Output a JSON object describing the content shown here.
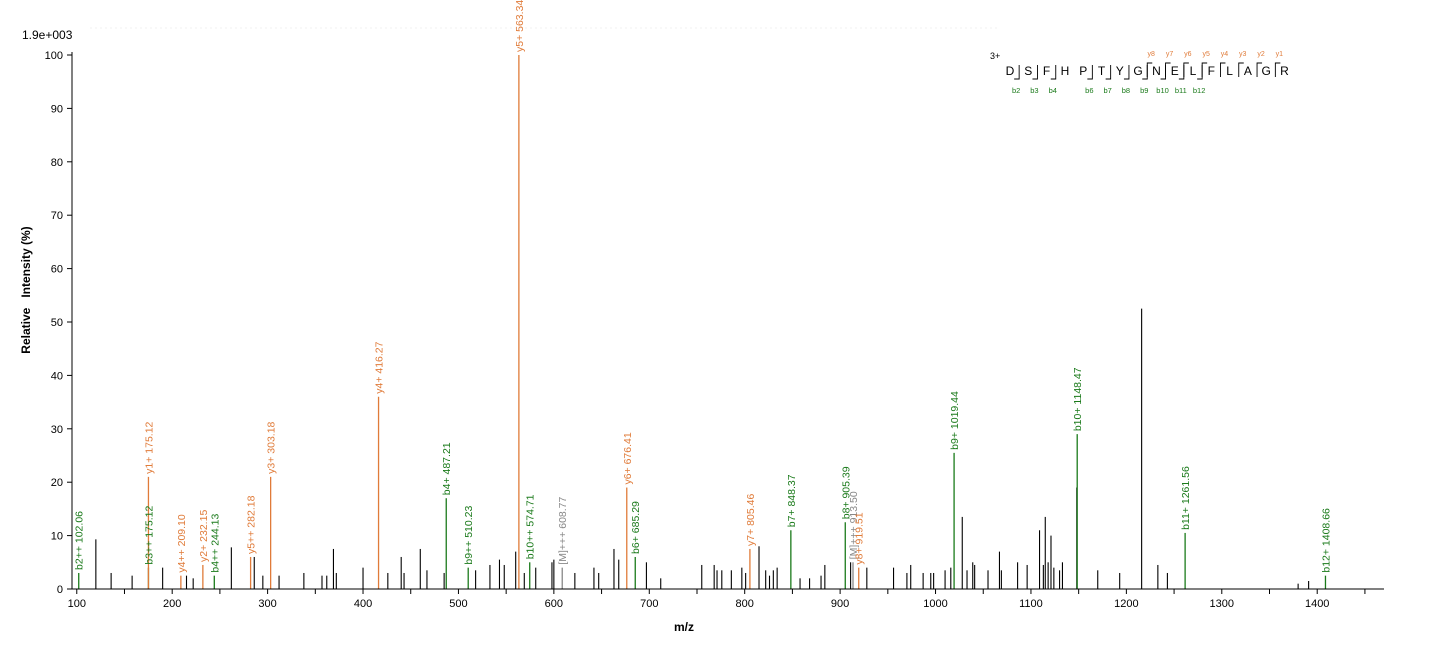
{
  "chart_data": {
    "type": "bar",
    "title": "",
    "scale_label": "1.9e+003",
    "xlabel": "m/z",
    "ylabel": "Relative   Intensity (%)",
    "xlim": [
      95,
      1470
    ],
    "ylim": [
      0,
      100
    ],
    "x_ticks": [
      100,
      200,
      300,
      400,
      500,
      600,
      700,
      800,
      900,
      1000,
      1100,
      1200,
      1300,
      1400
    ],
    "y_ticks": [
      0,
      10,
      20,
      30,
      40,
      50,
      60,
      70,
      80,
      90,
      100
    ],
    "colors": {
      "y_ion": "#e07b39",
      "b_ion": "#1a7a1a",
      "precursor": "#888888",
      "unassigned": "#000000"
    },
    "peptide": {
      "charge": "3+",
      "residues": [
        "D",
        "S",
        "F",
        "H",
        "P",
        "T",
        "Y",
        "G",
        "N",
        "E",
        "L",
        "F",
        "L",
        "A",
        "G",
        "R"
      ],
      "y_labels": [
        "y8",
        "y7",
        "y6",
        "y5",
        "y4",
        "y3",
        "y2",
        "y1"
      ],
      "y_positions": [
        8,
        9,
        10,
        11,
        12,
        13,
        14,
        15
      ],
      "b_labels": [
        "b2",
        "b3",
        "b4",
        "b6",
        "b7",
        "b8",
        "b9",
        "b10",
        "b11",
        "b12"
      ],
      "b_positions": [
        1,
        2,
        3,
        5,
        6,
        7,
        8,
        9,
        10,
        11
      ]
    },
    "annotated_peaks": [
      {
        "mz": 102.06,
        "intensity": 3,
        "type": "b",
        "label": "b2++ 102.06"
      },
      {
        "mz": 175.12,
        "intensity": 4,
        "type": "b",
        "label": "b3++ 175.12"
      },
      {
        "mz": 175.12,
        "intensity": 21,
        "type": "y",
        "label": "y1+ 175.12"
      },
      {
        "mz": 209.1,
        "intensity": 2.5,
        "type": "y",
        "label": "y4++ 209.10"
      },
      {
        "mz": 232.15,
        "intensity": 4.5,
        "type": "y",
        "label": "y2+ 232.15"
      },
      {
        "mz": 244.13,
        "intensity": 2.5,
        "type": "b",
        "label": "b4++ 244.13"
      },
      {
        "mz": 282.18,
        "intensity": 6,
        "type": "y",
        "label": "y5++ 282.18"
      },
      {
        "mz": 303.18,
        "intensity": 21,
        "type": "y",
        "label": "y3+ 303.18"
      },
      {
        "mz": 416.27,
        "intensity": 36,
        "type": "y",
        "label": "y4+ 416.27"
      },
      {
        "mz": 487.21,
        "intensity": 17,
        "type": "b",
        "label": "b4+ 487.21"
      },
      {
        "mz": 510.23,
        "intensity": 4,
        "type": "b",
        "label": "b9++ 510.23"
      },
      {
        "mz": 563.34,
        "intensity": 100,
        "type": "y",
        "label": "y5+ 563.34"
      },
      {
        "mz": 574.71,
        "intensity": 5,
        "type": "b",
        "label": "b10++ 574.71"
      },
      {
        "mz": 608.77,
        "intensity": 4,
        "type": "precursor",
        "label": "[M]+++ 608.77"
      },
      {
        "mz": 676.41,
        "intensity": 19,
        "type": "y",
        "label": "y6+ 676.41"
      },
      {
        "mz": 685.29,
        "intensity": 6,
        "type": "b",
        "label": "b6+ 685.29"
      },
      {
        "mz": 805.46,
        "intensity": 7.5,
        "type": "y",
        "label": "y7+ 805.46"
      },
      {
        "mz": 848.37,
        "intensity": 11,
        "type": "b",
        "label": "b7+ 848.37"
      },
      {
        "mz": 905.39,
        "intensity": 12.5,
        "type": "b",
        "label": "b8+ 905.39"
      },
      {
        "mz": 913.5,
        "intensity": 5,
        "type": "precursor",
        "label": "[M]+++ 913.50"
      },
      {
        "mz": 919.51,
        "intensity": 4,
        "type": "y",
        "label": "y8+ 919.51"
      },
      {
        "mz": 1019.44,
        "intensity": 25.5,
        "type": "b",
        "label": "b9+ 1019.44"
      },
      {
        "mz": 1148.47,
        "intensity": 29,
        "type": "b",
        "label": "b10+ 1148.47"
      },
      {
        "mz": 1261.56,
        "intensity": 10.5,
        "type": "b",
        "label": "b11+ 1261.56"
      },
      {
        "mz": 1408.66,
        "intensity": 2.5,
        "type": "b",
        "label": "b12+ 1408.66"
      }
    ],
    "unassigned_peaks": [
      {
        "mz": 120,
        "intensity": 9.3
      },
      {
        "mz": 136,
        "intensity": 3
      },
      {
        "mz": 158,
        "intensity": 2.5
      },
      {
        "mz": 190,
        "intensity": 4
      },
      {
        "mz": 215,
        "intensity": 2.5
      },
      {
        "mz": 222,
        "intensity": 2
      },
      {
        "mz": 262,
        "intensity": 7.8
      },
      {
        "mz": 286,
        "intensity": 6
      },
      {
        "mz": 295,
        "intensity": 2.5
      },
      {
        "mz": 312,
        "intensity": 2.5
      },
      {
        "mz": 338,
        "intensity": 3
      },
      {
        "mz": 357,
        "intensity": 2.5
      },
      {
        "mz": 362,
        "intensity": 2.5
      },
      {
        "mz": 369,
        "intensity": 7.5
      },
      {
        "mz": 372,
        "intensity": 3
      },
      {
        "mz": 400,
        "intensity": 4
      },
      {
        "mz": 426,
        "intensity": 3
      },
      {
        "mz": 440,
        "intensity": 6
      },
      {
        "mz": 443,
        "intensity": 3
      },
      {
        "mz": 460,
        "intensity": 7.5
      },
      {
        "mz": 467,
        "intensity": 3.5
      },
      {
        "mz": 485,
        "intensity": 3
      },
      {
        "mz": 518,
        "intensity": 3.5
      },
      {
        "mz": 533,
        "intensity": 4.5
      },
      {
        "mz": 543,
        "intensity": 5.5
      },
      {
        "mz": 548,
        "intensity": 4.5
      },
      {
        "mz": 560,
        "intensity": 7
      },
      {
        "mz": 569,
        "intensity": 3
      },
      {
        "mz": 581,
        "intensity": 4
      },
      {
        "mz": 598,
        "intensity": 5
      },
      {
        "mz": 600,
        "intensity": 5.5
      },
      {
        "mz": 622,
        "intensity": 3
      },
      {
        "mz": 642,
        "intensity": 4
      },
      {
        "mz": 647,
        "intensity": 3
      },
      {
        "mz": 663,
        "intensity": 7.5
      },
      {
        "mz": 668,
        "intensity": 5.5
      },
      {
        "mz": 697,
        "intensity": 5
      },
      {
        "mz": 712,
        "intensity": 2
      },
      {
        "mz": 755,
        "intensity": 4.5
      },
      {
        "mz": 768,
        "intensity": 4.5
      },
      {
        "mz": 771,
        "intensity": 3.5
      },
      {
        "mz": 776,
        "intensity": 3.5
      },
      {
        "mz": 786,
        "intensity": 3.5
      },
      {
        "mz": 797,
        "intensity": 4
      },
      {
        "mz": 801,
        "intensity": 3
      },
      {
        "mz": 815,
        "intensity": 8
      },
      {
        "mz": 822,
        "intensity": 3.5
      },
      {
        "mz": 826,
        "intensity": 2.5
      },
      {
        "mz": 830,
        "intensity": 3.5
      },
      {
        "mz": 834,
        "intensity": 4
      },
      {
        "mz": 858,
        "intensity": 2
      },
      {
        "mz": 868,
        "intensity": 2
      },
      {
        "mz": 880,
        "intensity": 2.5
      },
      {
        "mz": 884,
        "intensity": 4.5
      },
      {
        "mz": 911,
        "intensity": 5
      },
      {
        "mz": 928,
        "intensity": 4
      },
      {
        "mz": 956,
        "intensity": 4
      },
      {
        "mz": 970,
        "intensity": 3
      },
      {
        "mz": 974,
        "intensity": 4.5
      },
      {
        "mz": 987,
        "intensity": 3
      },
      {
        "mz": 995,
        "intensity": 3
      },
      {
        "mz": 998,
        "intensity": 3
      },
      {
        "mz": 1010,
        "intensity": 3.5
      },
      {
        "mz": 1016,
        "intensity": 4
      },
      {
        "mz": 1028,
        "intensity": 13.5
      },
      {
        "mz": 1033,
        "intensity": 3.5
      },
      {
        "mz": 1039,
        "intensity": 5
      },
      {
        "mz": 1041,
        "intensity": 4.5
      },
      {
        "mz": 1055,
        "intensity": 3.5
      },
      {
        "mz": 1067,
        "intensity": 7
      },
      {
        "mz": 1069,
        "intensity": 3.5
      },
      {
        "mz": 1086,
        "intensity": 5
      },
      {
        "mz": 1096,
        "intensity": 4.5
      },
      {
        "mz": 1109,
        "intensity": 11
      },
      {
        "mz": 1113,
        "intensity": 4.5
      },
      {
        "mz": 1115,
        "intensity": 13.5
      },
      {
        "mz": 1118,
        "intensity": 5
      },
      {
        "mz": 1121,
        "intensity": 10
      },
      {
        "mz": 1124,
        "intensity": 4
      },
      {
        "mz": 1130,
        "intensity": 3.5
      },
      {
        "mz": 1133,
        "intensity": 5
      },
      {
        "mz": 1148,
        "intensity": 19
      },
      {
        "mz": 1170,
        "intensity": 3.5
      },
      {
        "mz": 1193,
        "intensity": 3
      },
      {
        "mz": 1216,
        "intensity": 52.5
      },
      {
        "mz": 1233,
        "intensity": 4.5
      },
      {
        "mz": 1243,
        "intensity": 3
      },
      {
        "mz": 1380,
        "intensity": 1
      },
      {
        "mz": 1391,
        "intensity": 1.5
      }
    ]
  }
}
